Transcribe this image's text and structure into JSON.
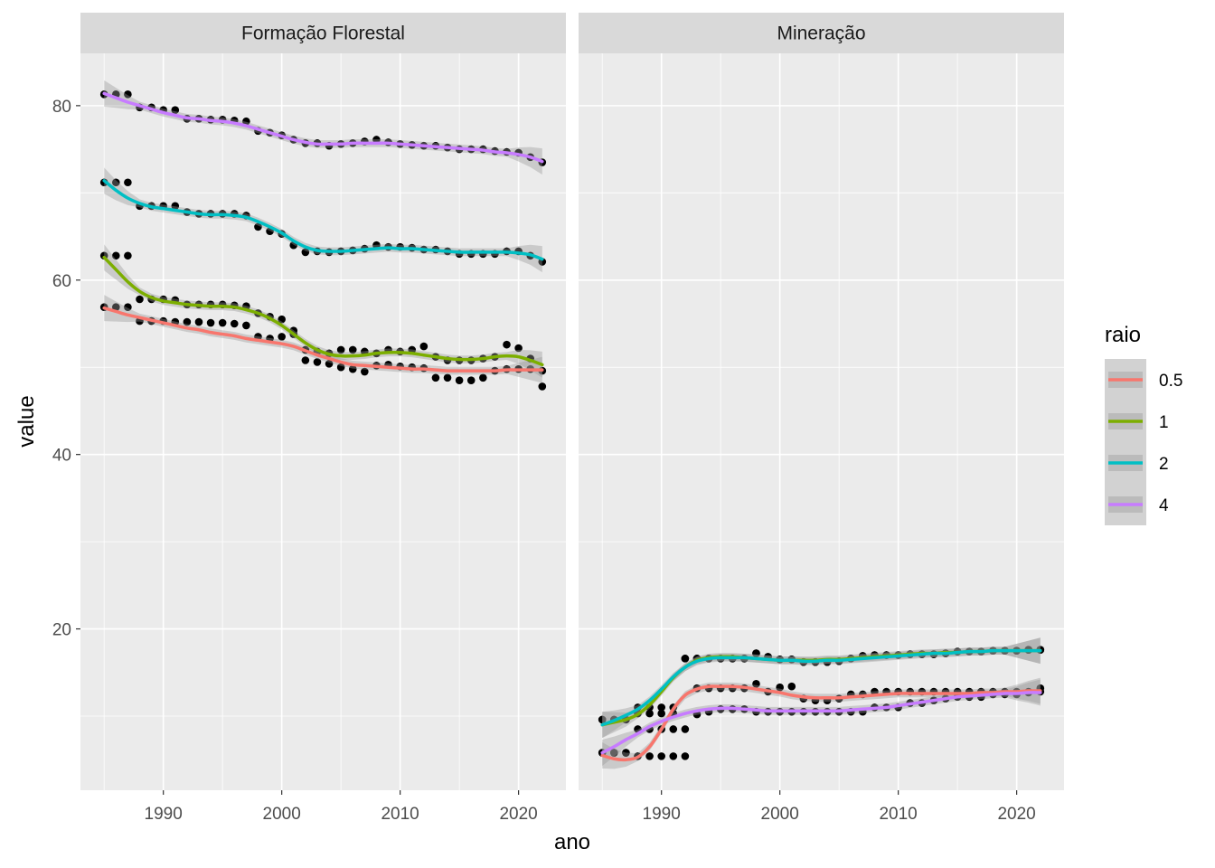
{
  "chart_data": {
    "type": "scatter",
    "subtype": "faceted scatter with loess smooth lines and confidence ribbons",
    "xlabel": "ano",
    "ylabel": "value",
    "xlim": [
      1983,
      2024
    ],
    "ylim": [
      1.5,
      86
    ],
    "x_ticks": [
      1990,
      2000,
      2010,
      2020
    ],
    "x_minor": [
      1985,
      1995,
      2005,
      2015
    ],
    "y_ticks": [
      20,
      40,
      60,
      80
    ],
    "y_minor": [
      10,
      30,
      50,
      70
    ],
    "grid": true,
    "legend": {
      "title": "raio",
      "position": "right",
      "entries": [
        {
          "label": "0.5",
          "color": "#F8766D"
        },
        {
          "label": "1",
          "color": "#7CAE00"
        },
        {
          "label": "2",
          "color": "#00BFC4"
        },
        {
          "label": "4",
          "color": "#C77CFF"
        }
      ]
    },
    "years": [
      1985,
      1986,
      1987,
      1988,
      1989,
      1990,
      1991,
      1992,
      1993,
      1994,
      1995,
      1996,
      1997,
      1998,
      1999,
      2000,
      2001,
      2002,
      2003,
      2004,
      2005,
      2006,
      2007,
      2008,
      2009,
      2010,
      2011,
      2012,
      2013,
      2014,
      2015,
      2016,
      2017,
      2018,
      2019,
      2020,
      2021,
      2022
    ],
    "facets": [
      {
        "title": "Formação Florestal",
        "series": [
          {
            "name": "0.5",
            "color": "#F8766D",
            "values": [
              56.9,
              56.9,
              56.9,
              55.3,
              55.3,
              55.3,
              55.2,
              55.2,
              55.2,
              55.1,
              55.1,
              55.0,
              54.8,
              53.5,
              53.3,
              53.5,
              53.8,
              50.8,
              50.6,
              50.4,
              50.0,
              49.8,
              49.5,
              50.2,
              50.3,
              50.1,
              50.0,
              49.9,
              48.8,
              48.8,
              48.5,
              48.5,
              48.8,
              49.6,
              49.8,
              49.8,
              49.8,
              47.8
            ],
            "smooth": [
              56.8,
              56.4,
              56.0,
              55.7,
              55.4,
              55.1,
              54.8,
              54.5,
              54.3,
              54.0,
              53.8,
              53.6,
              53.3,
              53.1,
              52.9,
              52.7,
              52.4,
              51.9,
              51.4,
              51.0,
              50.6,
              50.3,
              50.2,
              50.1,
              50.0,
              49.9,
              49.8,
              49.8,
              49.7,
              49.6,
              49.6,
              49.6,
              49.6,
              49.6,
              49.7,
              49.7,
              49.7,
              49.7
            ]
          },
          {
            "name": "1",
            "color": "#7CAE00",
            "values": [
              62.8,
              62.8,
              62.8,
              57.8,
              57.8,
              57.8,
              57.7,
              57.2,
              57.2,
              57.2,
              57.2,
              57.1,
              57.0,
              56.2,
              55.8,
              55.5,
              54.2,
              52.0,
              51.8,
              51.6,
              52.0,
              52.0,
              51.8,
              51.6,
              52.0,
              51.8,
              52.0,
              52.4,
              51.2,
              50.8,
              50.8,
              50.8,
              51.0,
              51.2,
              52.6,
              52.2,
              51.0,
              49.6
            ],
            "smooth": [
              62.6,
              61.2,
              59.8,
              58.7,
              58.0,
              57.6,
              57.4,
              57.2,
              57.1,
              57.0,
              57.0,
              56.9,
              56.6,
              56.2,
              55.6,
              54.8,
              53.8,
              52.8,
              52.0,
              51.5,
              51.3,
              51.3,
              51.4,
              51.6,
              51.7,
              51.7,
              51.6,
              51.4,
              51.2,
              51.0,
              50.9,
              50.9,
              51.0,
              51.2,
              51.3,
              51.2,
              50.8,
              50.3
            ]
          },
          {
            "name": "2",
            "color": "#00BFC4",
            "values": [
              71.2,
              71.2,
              71.2,
              68.5,
              68.5,
              68.5,
              68.5,
              67.8,
              67.6,
              67.6,
              67.6,
              67.6,
              67.4,
              66.1,
              65.6,
              65.3,
              64.0,
              63.2,
              63.3,
              63.2,
              63.3,
              63.4,
              63.6,
              64.0,
              63.8,
              63.8,
              63.7,
              63.5,
              63.5,
              63.3,
              63.0,
              63.0,
              63.0,
              63.0,
              63.3,
              63.3,
              62.8,
              62.1
            ],
            "smooth": [
              71.4,
              70.3,
              69.4,
              68.8,
              68.4,
              68.2,
              68.0,
              67.8,
              67.6,
              67.5,
              67.5,
              67.4,
              67.2,
              66.7,
              66.1,
              65.4,
              64.5,
              63.8,
              63.4,
              63.3,
              63.3,
              63.4,
              63.5,
              63.6,
              63.7,
              63.6,
              63.6,
              63.5,
              63.4,
              63.3,
              63.2,
              63.2,
              63.2,
              63.2,
              63.2,
              63.1,
              62.9,
              62.4
            ]
          },
          {
            "name": "4",
            "color": "#C77CFF",
            "values": [
              81.3,
              81.3,
              81.3,
              79.8,
              79.8,
              79.5,
              79.5,
              78.5,
              78.5,
              78.4,
              78.4,
              78.3,
              78.2,
              77.1,
              76.9,
              76.6,
              76.1,
              75.7,
              75.7,
              75.4,
              75.6,
              75.7,
              75.9,
              76.1,
              75.8,
              75.6,
              75.5,
              75.4,
              75.4,
              75.2,
              75.0,
              75.0,
              75.0,
              74.8,
              74.7,
              74.6,
              74.1,
              73.5
            ],
            "smooth": [
              81.4,
              80.9,
              80.4,
              80.0,
              79.6,
              79.2,
              78.9,
              78.6,
              78.5,
              78.3,
              78.2,
              78.0,
              77.7,
              77.3,
              76.9,
              76.5,
              76.1,
              75.8,
              75.6,
              75.6,
              75.6,
              75.7,
              75.7,
              75.7,
              75.7,
              75.6,
              75.5,
              75.4,
              75.3,
              75.2,
              75.1,
              75.0,
              74.9,
              74.7,
              74.6,
              74.4,
              74.1,
              73.6
            ]
          }
        ]
      },
      {
        "title": "Mineração",
        "series": [
          {
            "name": "0.5",
            "color": "#F8766D",
            "values": [
              5.8,
              5.8,
              5.8,
              5.4,
              5.4,
              5.4,
              5.4,
              5.4,
              13.2,
              13.2,
              13.2,
              13.2,
              13.2,
              13.7,
              12.8,
              13.3,
              13.4,
              12.0,
              11.8,
              11.8,
              12.0,
              12.5,
              12.5,
              12.8,
              12.8,
              12.8,
              12.8,
              12.8,
              12.8,
              12.8,
              12.8,
              12.8,
              12.8,
              12.8,
              12.8,
              12.8,
              12.8,
              13.2
            ],
            "smooth": [
              5.5,
              5.1,
              5.0,
              5.3,
              6.5,
              8.5,
              10.8,
              12.4,
              13.1,
              13.4,
              13.4,
              13.4,
              13.3,
              13.1,
              12.9,
              12.7,
              12.4,
              12.2,
              12.1,
              12.1,
              12.1,
              12.2,
              12.3,
              12.4,
              12.5,
              12.6,
              12.6,
              12.6,
              12.6,
              12.6,
              12.6,
              12.6,
              12.7,
              12.7,
              12.8,
              12.8,
              12.9,
              12.9
            ]
          },
          {
            "name": "1",
            "color": "#7CAE00",
            "values": [
              9.6,
              9.6,
              9.6,
              10.3,
              10.3,
              10.3,
              10.3,
              16.6,
              16.6,
              16.6,
              16.6,
              16.6,
              16.6,
              17.2,
              16.8,
              16.5,
              16.5,
              16.2,
              16.2,
              16.2,
              16.3,
              16.6,
              16.9,
              17.0,
              17.0,
              17.0,
              17.1,
              17.1,
              17.1,
              17.2,
              17.4,
              17.4,
              17.4,
              17.5,
              17.5,
              17.5,
              17.6,
              17.6
            ],
            "smooth": [
              9.0,
              9.3,
              9.6,
              10.2,
              11.3,
              12.8,
              14.4,
              15.6,
              16.4,
              16.7,
              16.8,
              16.8,
              16.7,
              16.6,
              16.5,
              16.4,
              16.4,
              16.4,
              16.4,
              16.5,
              16.5,
              16.6,
              16.7,
              16.8,
              16.9,
              17.0,
              17.1,
              17.2,
              17.2,
              17.3,
              17.3,
              17.4,
              17.4,
              17.5,
              17.5,
              17.5,
              17.5,
              17.5
            ]
          },
          {
            "name": "2",
            "color": "#00BFC4",
            "values": [
              9.6,
              9.6,
              9.6,
              11.0,
              11.0,
              11.0,
              11.0,
              16.6,
              16.6,
              16.6,
              16.6,
              16.6,
              16.6,
              17.2,
              16.8,
              16.5,
              16.5,
              16.2,
              16.2,
              16.2,
              16.3,
              16.6,
              16.9,
              17.0,
              17.0,
              17.0,
              17.1,
              17.1,
              17.1,
              17.2,
              17.4,
              17.4,
              17.4,
              17.5,
              17.5,
              17.5,
              17.6,
              17.6
            ],
            "smooth": [
              9.0,
              9.5,
              10.1,
              10.8,
              11.8,
              13.1,
              14.5,
              15.6,
              16.3,
              16.6,
              16.7,
              16.7,
              16.7,
              16.6,
              16.5,
              16.4,
              16.4,
              16.3,
              16.3,
              16.4,
              16.4,
              16.5,
              16.6,
              16.7,
              16.8,
              16.9,
              17.0,
              17.1,
              17.2,
              17.2,
              17.3,
              17.4,
              17.4,
              17.5,
              17.5,
              17.5,
              17.5,
              17.5
            ]
          },
          {
            "name": "4",
            "color": "#C77CFF",
            "values": [
              5.8,
              5.8,
              5.8,
              8.5,
              8.5,
              8.5,
              8.5,
              8.5,
              10.2,
              10.5,
              10.8,
              10.8,
              10.8,
              10.5,
              10.5,
              10.5,
              10.5,
              10.5,
              10.5,
              10.5,
              10.5,
              10.5,
              10.5,
              11.0,
              11.0,
              11.0,
              11.5,
              11.5,
              11.8,
              12.0,
              12.2,
              12.2,
              12.2,
              12.5,
              12.5,
              12.5,
              12.7,
              12.8
            ],
            "smooth": [
              5.8,
              6.5,
              7.3,
              8.0,
              8.8,
              9.4,
              9.9,
              10.3,
              10.6,
              10.8,
              10.9,
              10.9,
              10.8,
              10.7,
              10.6,
              10.6,
              10.6,
              10.6,
              10.6,
              10.6,
              10.6,
              10.7,
              10.8,
              10.9,
              11.0,
              11.2,
              11.4,
              11.6,
              11.8,
              12.0,
              12.2,
              12.3,
              12.4,
              12.5,
              12.6,
              12.6,
              12.7,
              12.7
            ]
          }
        ]
      }
    ]
  }
}
